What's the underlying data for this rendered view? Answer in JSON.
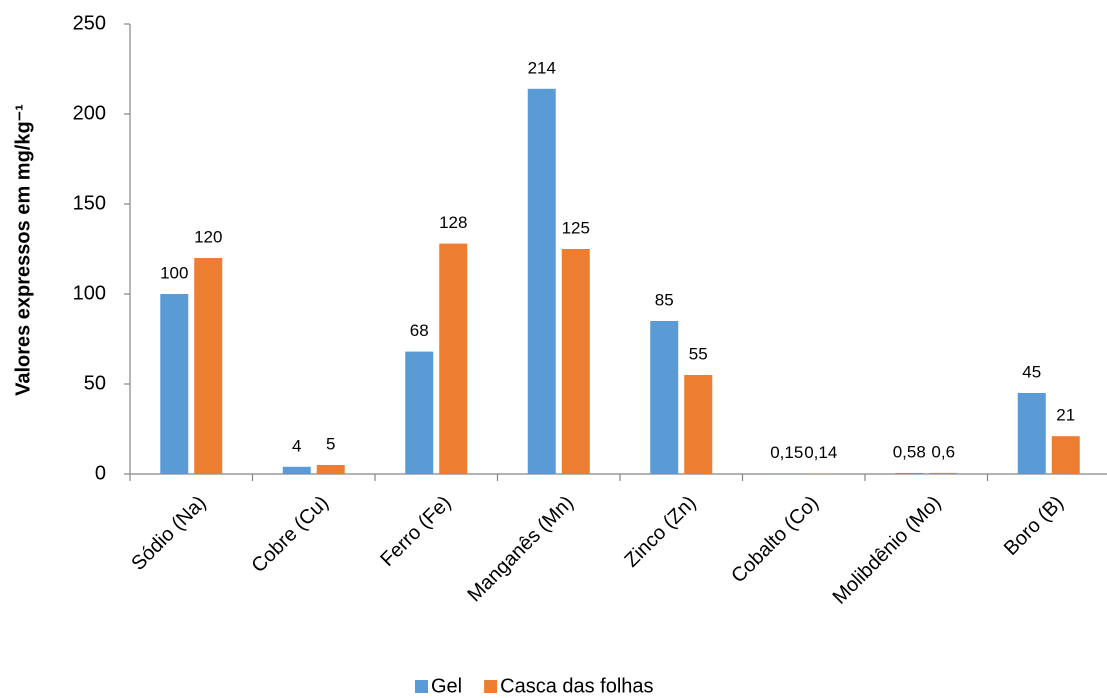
{
  "chart_data": {
    "type": "bar",
    "y_label": "Valores expressos em mg/kg⁻¹",
    "categories": [
      "Sódio (Na)",
      "Cobre (Cu)",
      "Ferro (Fe)",
      "Manganês (Mn)",
      "Zinco (Zn)",
      "Cobalto (Co)",
      "Molibdênio (Mo)",
      "Boro (B)"
    ],
    "series": [
      {
        "name": "Gel",
        "color": "#5b9bd5",
        "values": [
          100,
          4,
          68,
          214,
          85,
          0.15,
          0.58,
          45
        ],
        "value_labels": [
          "100",
          "4",
          "68",
          "214",
          "85",
          "0,15",
          "0,58",
          "45"
        ]
      },
      {
        "name": "Casca das folhas",
        "color": "#ed7d31",
        "values": [
          120,
          5,
          128,
          125,
          55,
          0.14,
          0.6,
          21
        ],
        "value_labels": [
          "120",
          "5",
          "128",
          "125",
          "55",
          "0,14",
          "0,6",
          "21"
        ]
      }
    ],
    "ylim": [
      0,
      250
    ],
    "yticks": [
      0,
      50,
      100,
      150,
      200,
      250
    ],
    "legend": "bottom"
  }
}
